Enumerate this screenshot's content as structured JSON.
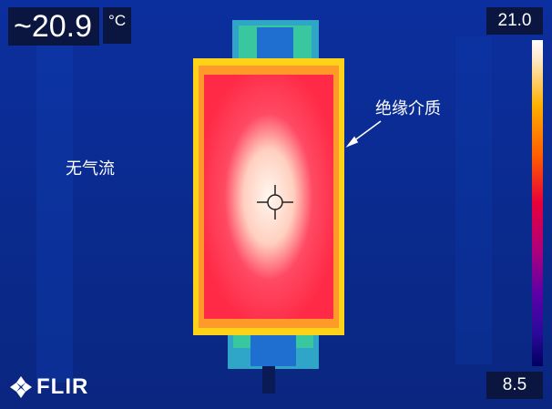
{
  "readout": {
    "temperature": "~20.9",
    "unit": "°C"
  },
  "scale": {
    "max": "21.0",
    "min": "8.5"
  },
  "annotations": {
    "no_airflow": "无气流",
    "insulation_medium": "绝缘介质"
  },
  "brand": {
    "logo_text": "FLIR",
    "logo_icon": "flir-logo-icon"
  },
  "palette": {
    "background": "#0a2a8c",
    "hot": "#ffe8d6",
    "warm": "#ff3b5c",
    "edge": "#ffd000"
  }
}
